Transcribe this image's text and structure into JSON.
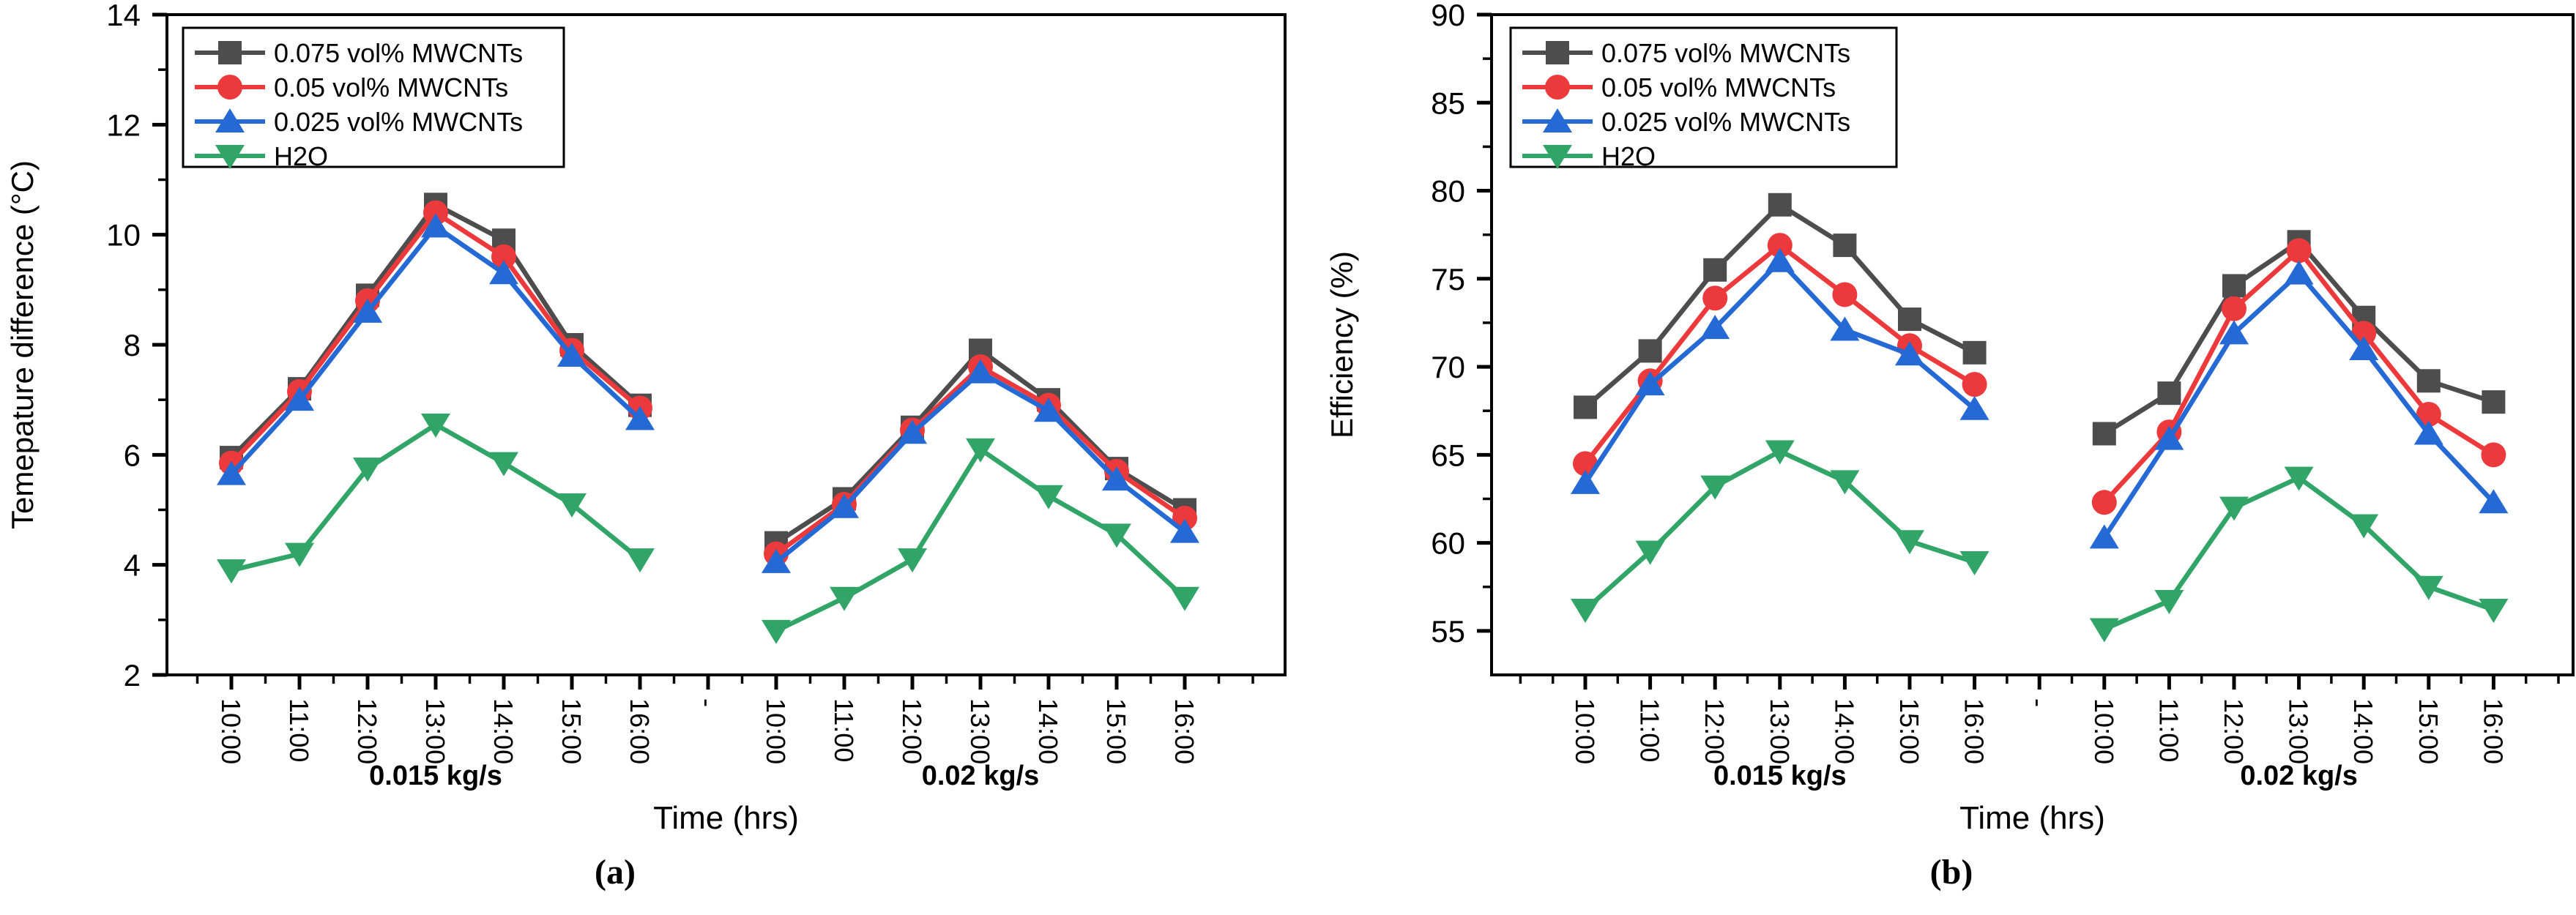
{
  "figure_title": "",
  "chart_data": [
    {
      "panel": "a",
      "type": "line",
      "caption": "(a)",
      "ylabel": "Temepature difference (°C)",
      "xlabel": "Time (hrs)",
      "ylim": [
        2,
        14
      ],
      "yticks": [
        2,
        4,
        6,
        8,
        10,
        12,
        14
      ],
      "categories": [
        "10:00",
        "11:00",
        "12:00",
        "13:00",
        "14:00",
        "15:00",
        "16:00"
      ],
      "group_separator": "-",
      "groups": [
        "0.015 kg/s",
        "0.02 kg/s"
      ],
      "legend_position": "top-left",
      "grid": false,
      "series": [
        {
          "name": "0.075 vol% MWCNTs",
          "marker": "square",
          "color": "#4d4d4d",
          "values": [
            [
              5.95,
              7.2,
              8.9,
              10.55,
              9.9,
              8.0,
              6.9
            ],
            [
              4.4,
              5.2,
              6.5,
              7.9,
              7.0,
              5.75,
              5.0
            ]
          ]
        },
        {
          "name": "0.05 vol% MWCNTs",
          "marker": "circle",
          "color": "#ec3a3c",
          "values": [
            [
              5.85,
              7.15,
              8.8,
              10.4,
              9.6,
              7.9,
              6.85
            ],
            [
              4.2,
              5.1,
              6.45,
              7.6,
              6.9,
              5.7,
              4.85
            ]
          ]
        },
        {
          "name": "0.025 vol% MWCNTs",
          "marker": "triangle-up",
          "color": "#2569d4",
          "values": [
            [
              5.65,
              7.0,
              8.6,
              10.15,
              9.3,
              7.8,
              6.65
            ],
            [
              4.05,
              5.05,
              6.4,
              7.5,
              6.8,
              5.55,
              4.6
            ]
          ]
        },
        {
          "name": "H2O",
          "marker": "triangle-down",
          "color": "#31a567",
          "values": [
            [
              3.9,
              4.2,
              5.75,
              6.55,
              5.85,
              5.1,
              4.1
            ],
            [
              2.8,
              3.4,
              4.1,
              6.1,
              5.25,
              4.55,
              3.4
            ]
          ]
        }
      ]
    },
    {
      "panel": "b",
      "type": "line",
      "caption": "(b)",
      "ylabel": "Efficiency (%)",
      "xlabel": "Time (hrs)",
      "ylim": [
        52.5,
        90
      ],
      "yticks": [
        55,
        60,
        65,
        70,
        75,
        80,
        85,
        90
      ],
      "categories": [
        "10:00",
        "11:00",
        "12:00",
        "13:00",
        "14:00",
        "15:00",
        "16:00"
      ],
      "group_separator": "-",
      "groups": [
        "0.015 kg/s",
        "0.02 kg/s"
      ],
      "legend_position": "top-left",
      "grid": false,
      "series": [
        {
          "name": "0.075 vol% MWCNTs",
          "marker": "square",
          "color": "#4d4d4d",
          "values": [
            [
              67.7,
              70.9,
              75.5,
              79.2,
              76.9,
              72.7,
              70.8
            ],
            [
              66.2,
              68.5,
              74.6,
              77.1,
              72.8,
              69.2,
              68.0
            ]
          ]
        },
        {
          "name": "0.05 vol% MWCNTs",
          "marker": "circle",
          "color": "#ec3a3c",
          "values": [
            [
              64.5,
              69.2,
              73.9,
              76.9,
              74.1,
              71.2,
              69.0
            ],
            [
              62.3,
              66.3,
              73.3,
              76.6,
              71.9,
              67.3,
              65.0
            ]
          ]
        },
        {
          "name": "0.025 vol% MWCNTs",
          "marker": "triangle-up",
          "color": "#2569d4",
          "values": [
            [
              63.4,
              69.0,
              72.2,
              76.0,
              72.1,
              70.7,
              67.6
            ],
            [
              60.3,
              65.9,
              71.9,
              75.3,
              71.0,
              66.2,
              62.3
            ]
          ]
        },
        {
          "name": "H2O",
          "marker": "triangle-down",
          "color": "#31a567",
          "values": [
            [
              56.2,
              59.5,
              63.2,
              65.2,
              63.5,
              60.1,
              58.9
            ],
            [
              55.1,
              56.7,
              62.0,
              63.7,
              61.0,
              57.5,
              56.2
            ]
          ]
        }
      ]
    }
  ]
}
